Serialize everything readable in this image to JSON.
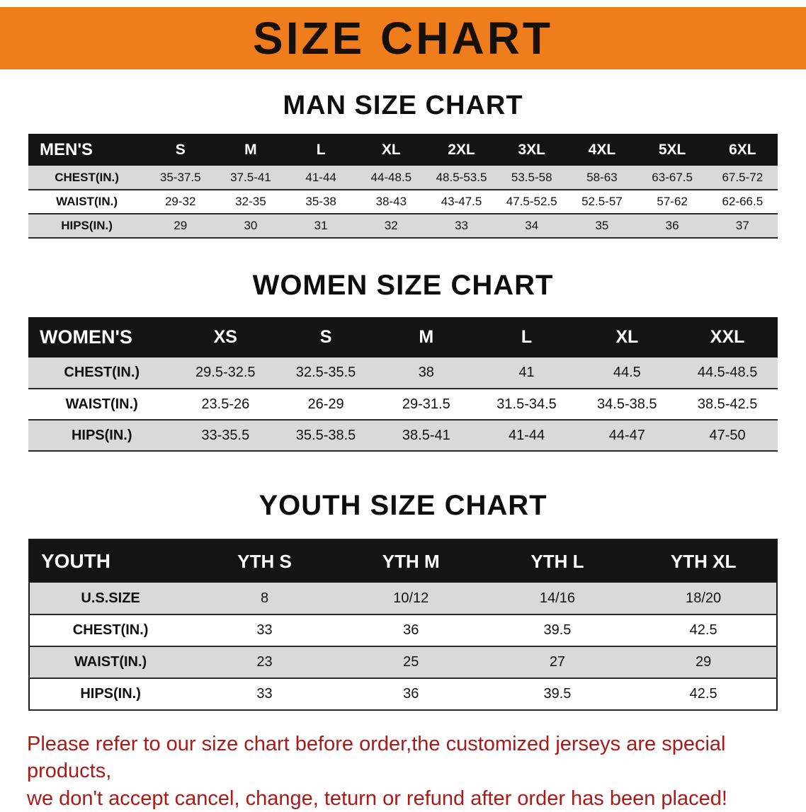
{
  "banner": {
    "title": "SIZE CHART",
    "bg_color": "#ef7d1b"
  },
  "sections": [
    {
      "id": "men",
      "heading": "MAN SIZE CHART",
      "table": {
        "header": [
          "MEN'S",
          "S",
          "M",
          "L",
          "XL",
          "2XL",
          "3XL",
          "4XL",
          "5XL",
          "6XL"
        ],
        "rows": [
          [
            "CHEST(IN.)",
            "35-37.5",
            "37.5-41",
            "41-44",
            "44-48.5",
            "48.5-53.5",
            "53.5-58",
            "58-63",
            "63-67.5",
            "67.5-72"
          ],
          [
            "WAIST(IN.)",
            "29-32",
            "32-35",
            "35-38",
            "38-43",
            "43-47.5",
            "47.5-52.5",
            "52.5-57",
            "57-62",
            "62-66.5"
          ],
          [
            "HIPS(IN.)",
            "29",
            "30",
            "31",
            "32",
            "33",
            "34",
            "35",
            "36",
            "37"
          ]
        ]
      }
    },
    {
      "id": "women",
      "heading": "WOMEN SIZE CHART",
      "table": {
        "header": [
          "WOMEN'S",
          "XS",
          "S",
          "M",
          "L",
          "XL",
          "XXL"
        ],
        "rows": [
          [
            "CHEST(IN.)",
            "29.5-32.5",
            "32.5-35.5",
            "38",
            "41",
            "44.5",
            "44.5-48.5"
          ],
          [
            "WAIST(IN.)",
            "23.5-26",
            "26-29",
            "29-31.5",
            "31.5-34.5",
            "34.5-38.5",
            "38.5-42.5"
          ],
          [
            "HIPS(IN.)",
            "33-35.5",
            "35.5-38.5",
            "38.5-41",
            "41-44",
            "44-47",
            "47-50"
          ]
        ]
      }
    },
    {
      "id": "youth",
      "heading": "YOUTH SIZE CHART",
      "table": {
        "header": [
          "YOUTH",
          "YTH S",
          "YTH M",
          "YTH L",
          "YTH XL"
        ],
        "rows": [
          [
            "U.S.SIZE",
            "8",
            "10/12",
            "14/16",
            "18/20"
          ],
          [
            "CHEST(IN.)",
            "33",
            "36",
            "39.5",
            "42.5"
          ],
          [
            "WAIST(IN.)",
            "23",
            "25",
            "27",
            "29"
          ],
          [
            "HIPS(IN.)",
            "33",
            "36",
            "39.5",
            "42.5"
          ]
        ]
      }
    }
  ],
  "disclaimer": {
    "line1": "Please refer to our size chart before order,the customized jerseys are special products,",
    "line2": "we don't accept cancel, change, teturn or refund after order has been placed!",
    "color": "#ab1a17"
  }
}
